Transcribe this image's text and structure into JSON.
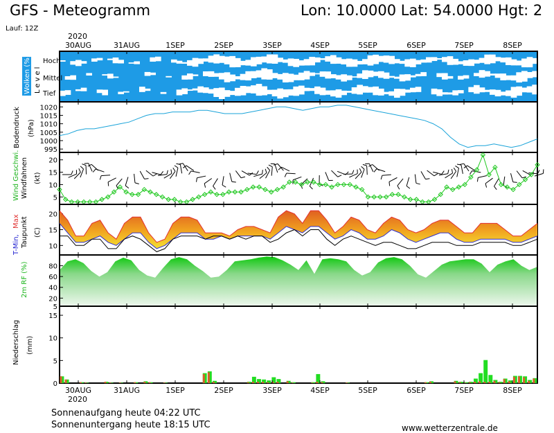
{
  "header": {
    "title": "GFS - Meteogramm",
    "location": "Lon: 10.0000 Lat: 54.0000 Hgt: 2",
    "run": "Lauf: 12Z",
    "year": "2020"
  },
  "x_axis": {
    "labels": [
      "30AUG",
      "31AUG",
      "1SEP",
      "2SEP",
      "3SEP",
      "4SEP",
      "5SEP",
      "6SEP",
      "7SEP",
      "8SEP"
    ],
    "start_label": "30AUG",
    "end_label": "8SEP"
  },
  "panels": {
    "clouds": {
      "ylabel": "Wolken (%)",
      "ylabel2": "Level",
      "levels": [
        "Hoch",
        "Mittel",
        "Tief"
      ],
      "color": "#1e9be6"
    },
    "pressure": {
      "ylabel": "Bodendruck",
      "unit": "(hPa)",
      "ticks": [
        995,
        1000,
        1005,
        1010,
        1015,
        1020
      ],
      "color": "#19a3d9"
    },
    "wind": {
      "ylabel_green": "Wind Geschwi.",
      "ylabel_black": "Windfahnen",
      "unit": "(kt)",
      "ticks": [
        5,
        10,
        15,
        20
      ],
      "color": "#1ec81e"
    },
    "temperature": {
      "ylabel_blue": "T-Min,",
      "ylabel_red": "Max",
      "ylabel_black": "Taupunkt",
      "unit": "(C)",
      "ticks": [
        10,
        15,
        20
      ],
      "color_fill": "#f0a020",
      "color_max": "#e03030"
    },
    "humidity": {
      "ylabel": "2m RF (%)",
      "ticks": [
        5,
        20,
        40,
        60,
        80
      ],
      "color": "#19c919"
    },
    "precip": {
      "ylabel": "Niederschlag",
      "unit": "(mm)",
      "ticks": [
        0,
        5,
        10,
        15
      ],
      "color_conv": "#22dd22",
      "color_large": "#d9602a"
    }
  },
  "chart_data": [
    {
      "type": "area",
      "title": "Wolken (%)",
      "x": [
        "30AUG",
        "31AUG",
        "1SEP",
        "2SEP",
        "3SEP",
        "4SEP",
        "5SEP",
        "6SEP",
        "7SEP",
        "8SEP"
      ],
      "series": [
        {
          "name": "Hoch",
          "values": [
            80,
            85,
            90,
            40,
            50,
            60,
            45,
            70,
            55,
            50
          ]
        },
        {
          "name": "Mittel",
          "values": [
            90,
            95,
            100,
            60,
            40,
            70,
            60,
            85,
            75,
            40
          ]
        },
        {
          "name": "Tief",
          "values": [
            85,
            90,
            95,
            50,
            45,
            65,
            55,
            80,
            70,
            45
          ]
        }
      ]
    },
    {
      "type": "line",
      "title": "Bodendruck (hPa)",
      "ylim": [
        993,
        1023
      ],
      "x_steps": 40,
      "values": [
        1003,
        1004,
        1006,
        1007,
        1007,
        1008,
        1009,
        1010,
        1011,
        1013,
        1015,
        1016,
        1016,
        1017,
        1017,
        1017,
        1018,
        1018,
        1017,
        1016,
        1016,
        1016,
        1017,
        1018,
        1019,
        1020,
        1020,
        1019,
        1018,
        1019,
        1020,
        1020,
        1021,
        1021,
        1020,
        1019,
        1018,
        1017,
        1016,
        1015,
        1014,
        1013,
        1012,
        1010,
        1007,
        1002,
        998,
        996,
        997,
        997,
        998,
        997,
        996,
        997,
        999,
        1001
      ]
    },
    {
      "type": "line",
      "title": "Wind Geschwi. (kt)",
      "ylim": [
        2,
        23
      ],
      "values": [
        8,
        4,
        3,
        3,
        3,
        3,
        3,
        4,
        5,
        7,
        9,
        7,
        6,
        6,
        8,
        7,
        6,
        5,
        4,
        4,
        3,
        3,
        4,
        5,
        6,
        7,
        6,
        6,
        7,
        7,
        7,
        8,
        9,
        9,
        8,
        7,
        8,
        9,
        11,
        11,
        10,
        11,
        11,
        10,
        10,
        9,
        10,
        10,
        10,
        9,
        8,
        5,
        5,
        5,
        5,
        6,
        6,
        5,
        4,
        4,
        3,
        3,
        4,
        6,
        9,
        8,
        9,
        10,
        13,
        16,
        22,
        14,
        17,
        10,
        9,
        8,
        10,
        12,
        14,
        18
      ]
    },
    {
      "type": "area",
      "title": "T-Min, Max / Taupunkt (C)",
      "ylim": [
        7,
        23
      ],
      "series": [
        {
          "name": "Max",
          "values": [
            21,
            18,
            13,
            13,
            17,
            18,
            14,
            12,
            17,
            19,
            19,
            14,
            11,
            12,
            17,
            19,
            19,
            18,
            14,
            14,
            14,
            13,
            15,
            16,
            16,
            15,
            14,
            19,
            21,
            20,
            17,
            21,
            21,
            18,
            14,
            16,
            19,
            18,
            15,
            14,
            17,
            19,
            18,
            15,
            14,
            15,
            17,
            18,
            18,
            16,
            14,
            14,
            17,
            17,
            17,
            15,
            13,
            13,
            15,
            17
          ]
        },
        {
          "name": "T-Min",
          "values": [
            17,
            14,
            11,
            11,
            12,
            13,
            11,
            10,
            12,
            14,
            14,
            11,
            9,
            10,
            12,
            14,
            14,
            14,
            12,
            12,
            13,
            12,
            13,
            13,
            13,
            13,
            12,
            14,
            16,
            15,
            14,
            16,
            16,
            14,
            12,
            13,
            15,
            14,
            12,
            12,
            13,
            15,
            14,
            12,
            11,
            12,
            13,
            14,
            14,
            12,
            11,
            11,
            12,
            12,
            12,
            12,
            11,
            11,
            12,
            13
          ]
        },
        {
          "name": "Taupunkt",
          "values": [
            13,
            13,
            10,
            10,
            12,
            12,
            9,
            9,
            12,
            13,
            12,
            10,
            8,
            9,
            12,
            13,
            13,
            13,
            12,
            13,
            13,
            12,
            13,
            12,
            13,
            13,
            11,
            12,
            14,
            15,
            13,
            15,
            15,
            12,
            10,
            12,
            13,
            12,
            11,
            10,
            11,
            11,
            10,
            9,
            9,
            10,
            11,
            11,
            11,
            10,
            10,
            10,
            11,
            11,
            11,
            11,
            10,
            10,
            11,
            12
          ]
        }
      ]
    },
    {
      "type": "area",
      "title": "2m RF (%)",
      "ylim": [
        5,
        100
      ],
      "values": [
        72,
        88,
        92,
        85,
        70,
        60,
        68,
        88,
        95,
        90,
        72,
        62,
        58,
        76,
        92,
        96,
        92,
        80,
        70,
        58,
        60,
        72,
        88,
        90,
        92,
        95,
        97,
        96,
        90,
        82,
        72,
        90,
        65,
        92,
        94,
        92,
        88,
        72,
        62,
        68,
        86,
        94,
        96,
        92,
        80,
        64,
        58,
        70,
        82,
        88,
        90,
        92,
        92,
        84,
        68,
        82,
        88,
        92,
        80,
        72,
        78
      ]
    },
    {
      "type": "bar",
      "title": "Niederschlag (mm)",
      "ylim": [
        0,
        17
      ],
      "series": [
        {
          "name": "total",
          "values": [
            1.5,
            0.8,
            0,
            0,
            0.2,
            0.1,
            0,
            0,
            0,
            0.3,
            0.1,
            0,
            0.1,
            0,
            0,
            0.2,
            0,
            0.4,
            0.2,
            0,
            0,
            0.1,
            0,
            0,
            0,
            0,
            0,
            0,
            0,
            2.2,
            2.6,
            0.5,
            0,
            0,
            0,
            0,
            0,
            0,
            0.3,
            1.4,
            0.9,
            0.8,
            0.6,
            1.3,
            0.9,
            0,
            0.5,
            0.2,
            0,
            0,
            0,
            0.2,
            2.0,
            0.4,
            0,
            0,
            0,
            0,
            0.1,
            0,
            0,
            0,
            0,
            0,
            0,
            0,
            0,
            0,
            0,
            0,
            0,
            0,
            0,
            0,
            0.2,
            0.4,
            0,
            0,
            0,
            0,
            0.5,
            0.3,
            0.2,
            0.3,
            1.0,
            2.2,
            5.1,
            1.8,
            0.7,
            0.3,
            1.0,
            0.6,
            1.6,
            1.6,
            1.5,
            0.7,
            1.1
          ]
        },
        {
          "name": "large",
          "values": [
            1.5,
            0.8,
            0,
            0,
            0.2,
            0.1,
            0,
            0,
            0,
            0.3,
            0.1,
            0,
            0.1,
            0,
            0,
            0.2,
            0,
            0.3,
            0.2,
            0,
            0,
            0.1,
            0,
            0,
            0,
            0,
            0,
            0,
            0,
            2.0,
            2.4,
            0.3,
            0,
            0,
            0,
            0,
            0,
            0,
            0.2,
            0.3,
            0.3,
            0.3,
            0.2,
            0.3,
            0.3,
            0,
            0.4,
            0.1,
            0,
            0,
            0,
            0.1,
            0.3,
            0.2,
            0,
            0,
            0,
            0,
            0.1,
            0,
            0,
            0,
            0,
            0,
            0,
            0,
            0,
            0,
            0,
            0,
            0,
            0,
            0,
            0,
            0.2,
            0.3,
            0,
            0,
            0,
            0,
            0.4,
            0.2,
            0.1,
            0.2,
            0.3,
            0.4,
            0.3,
            0.3,
            0.5,
            0.2,
            0.9,
            0.4,
            1.4,
            1.5,
            1.3,
            0.5,
            1.0
          ]
        }
      ]
    }
  ],
  "footer": {
    "sunrise": "Sonnenaufgang heute 04:22 UTC",
    "sunset": "Sonnenuntergang heute 18:15 UTC",
    "source": "www.wetterzentrale.de"
  }
}
